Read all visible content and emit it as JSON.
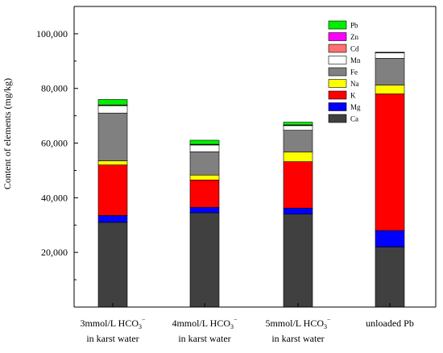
{
  "chart_data": {
    "type": "bar",
    "stacked": true,
    "title": "",
    "ylabel": "Content of elements (mg/kg)",
    "xlabel": "",
    "ylim": [
      0,
      110000
    ],
    "yticks": [
      20000,
      40000,
      60000,
      80000,
      100000
    ],
    "ytick_labels": [
      "20,000",
      "40,000",
      "60,000",
      "80,000",
      "100,000"
    ],
    "grid": false,
    "legend_position": "top-right",
    "categories": [
      {
        "line1": "3mmol/L HCO",
        "sub": "3",
        "sup": "−",
        "line2": "in karst water"
      },
      {
        "line1": "4mmol/L HCO",
        "sub": "3",
        "sup": "−",
        "line2": "in karst water"
      },
      {
        "line1": "5mmol/L HCO",
        "sub": "3",
        "sup": "−",
        "line2": "in karst water"
      },
      {
        "line1": "unloaded Pb",
        "sub": "",
        "sup": "",
        "line2": ""
      }
    ],
    "series": [
      {
        "name": "Ca",
        "color": "#404040",
        "values": [
          31000,
          34500,
          34000,
          22000
        ]
      },
      {
        "name": "Mg",
        "color": "#0000ff",
        "values": [
          2500,
          2000,
          2200,
          6000
        ]
      },
      {
        "name": "K",
        "color": "#ff0000",
        "values": [
          18500,
          10000,
          17000,
          50000
        ]
      },
      {
        "name": "Na",
        "color": "#ffff00",
        "values": [
          1500,
          1800,
          3500,
          3200
        ]
      },
      {
        "name": "Fe",
        "color": "#808080",
        "values": [
          17500,
          8500,
          8000,
          9800
        ]
      },
      {
        "name": "Mn",
        "color": "#ffffff",
        "values": [
          2700,
          2500,
          1700,
          2000
        ]
      },
      {
        "name": "Cd",
        "color": "#ff7070",
        "values": [
          150,
          150,
          150,
          150
        ]
      },
      {
        "name": "Zn",
        "color": "#ff00ff",
        "values": [
          100,
          100,
          100,
          100
        ]
      },
      {
        "name": "Pb",
        "color": "#00ee00",
        "values": [
          2000,
          1500,
          1000,
          0
        ]
      }
    ]
  }
}
